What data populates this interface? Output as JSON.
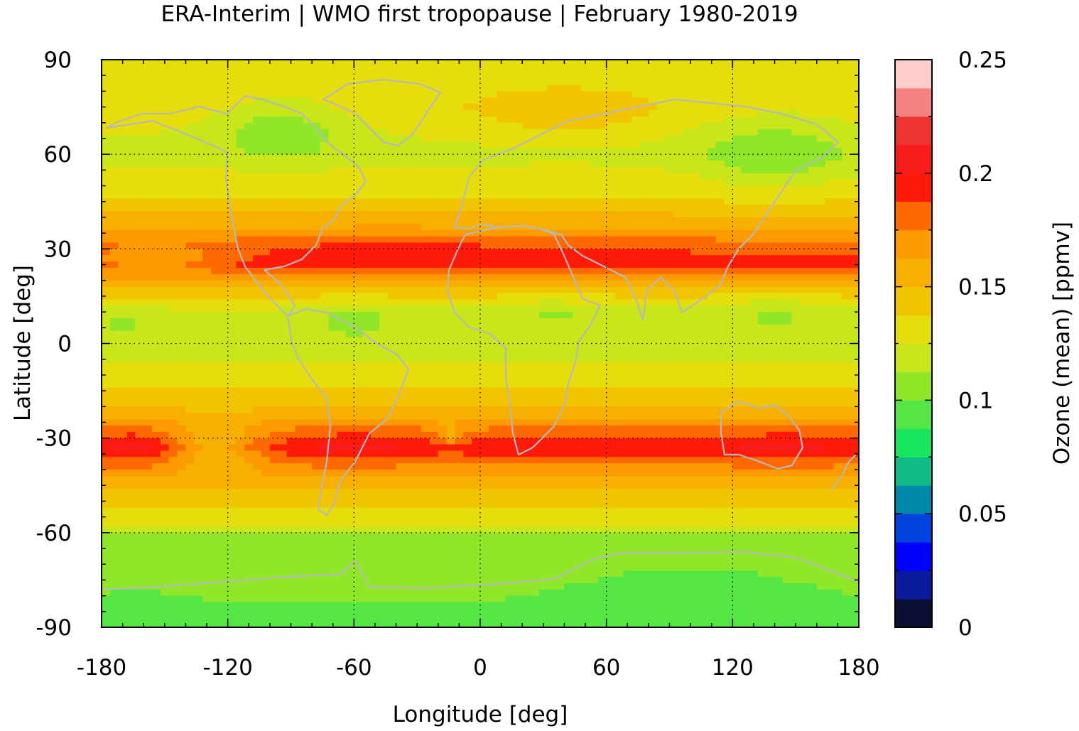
{
  "chart_data": {
    "type": "heatmap",
    "title": "ERA-Interim | WMO first tropopause | February 1980-2019",
    "xlabel": "Longitude [deg]",
    "ylabel": "Latitude [deg]",
    "xlim": [
      -180,
      180
    ],
    "ylim": [
      -90,
      90
    ],
    "xticks": [
      "-180",
      "-120",
      "-60",
      "0",
      "60",
      "120",
      "180"
    ],
    "yticks": [
      "90",
      "60",
      "30",
      "0",
      "-30",
      "-60",
      "-90"
    ],
    "grid": true,
    "colorbar": {
      "label": "Ozone (mean) [ppmv]",
      "ticks": [
        "0.25",
        "0.2",
        "0.15",
        "0.1",
        "0.05",
        "0"
      ],
      "range": [
        0,
        0.25
      ],
      "levels": [
        {
          "min": 0.0,
          "max": 0.0125,
          "color": "#0b0f33"
        },
        {
          "min": 0.0125,
          "max": 0.025,
          "color": "#0a1a9a"
        },
        {
          "min": 0.025,
          "max": 0.0375,
          "color": "#0000ff"
        },
        {
          "min": 0.0375,
          "max": 0.05,
          "color": "#0044dd"
        },
        {
          "min": 0.05,
          "max": 0.0625,
          "color": "#0088aa"
        },
        {
          "min": 0.0625,
          "max": 0.075,
          "color": "#10bb88"
        },
        {
          "min": 0.075,
          "max": 0.0875,
          "color": "#18e660"
        },
        {
          "min": 0.0875,
          "max": 0.1,
          "color": "#55e645"
        },
        {
          "min": 0.1,
          "max": 0.1125,
          "color": "#90e628"
        },
        {
          "min": 0.1125,
          "max": 0.125,
          "color": "#c8e619"
        },
        {
          "min": 0.125,
          "max": 0.1375,
          "color": "#e6dd0c"
        },
        {
          "min": 0.1375,
          "max": 0.15,
          "color": "#f2c400"
        },
        {
          "min": 0.15,
          "max": 0.1625,
          "color": "#f8b000"
        },
        {
          "min": 0.1625,
          "max": 0.175,
          "color": "#fc9b00"
        },
        {
          "min": 0.175,
          "max": 0.1875,
          "color": "#ff6a00"
        },
        {
          "min": 0.1875,
          "max": 0.2,
          "color": "#ff1a0a"
        },
        {
          "min": 0.2,
          "max": 0.2125,
          "color": "#f81c1c"
        },
        {
          "min": 0.2125,
          "max": 0.225,
          "color": "#ee3333"
        },
        {
          "min": 0.225,
          "max": 0.2375,
          "color": "#f58080"
        },
        {
          "min": 0.2375,
          "max": 0.25,
          "color": "#ffcccc"
        }
      ]
    },
    "lat_profile": [
      {
        "lat": 90,
        "value": 0.128
      },
      {
        "lat": 75,
        "value": 0.132
      },
      {
        "lat": 60,
        "value": 0.12
      },
      {
        "lat": 45,
        "value": 0.14
      },
      {
        "lat": 38,
        "value": 0.158
      },
      {
        "lat": 30,
        "value": 0.185
      },
      {
        "lat": 25,
        "value": 0.19
      },
      {
        "lat": 18,
        "value": 0.15
      },
      {
        "lat": 10,
        "value": 0.122
      },
      {
        "lat": 0,
        "value": 0.118
      },
      {
        "lat": -10,
        "value": 0.13
      },
      {
        "lat": -20,
        "value": 0.148
      },
      {
        "lat": -27,
        "value": 0.175
      },
      {
        "lat": -33,
        "value": 0.195
      },
      {
        "lat": -40,
        "value": 0.17
      },
      {
        "lat": -48,
        "value": 0.145
      },
      {
        "lat": -58,
        "value": 0.125
      },
      {
        "lat": -62,
        "value": 0.108
      },
      {
        "lat": -75,
        "value": 0.105
      },
      {
        "lat": -90,
        "value": 0.095
      }
    ],
    "anomalies": [
      {
        "lon": -95,
        "lat": 68,
        "rlon": 30,
        "rlat": 9,
        "delta": -0.022
      },
      {
        "lon": 140,
        "lat": 60,
        "rlon": 35,
        "rlat": 12,
        "delta": -0.02
      },
      {
        "lon": 40,
        "lat": 73,
        "rlon": 50,
        "rlat": 10,
        "delta": 0.014
      },
      {
        "lon": -45,
        "lat": 28,
        "rlon": 45,
        "rlat": 6,
        "delta": 0.012
      },
      {
        "lon": 40,
        "lat": 27,
        "rlon": 45,
        "rlat": 5,
        "delta": 0.01
      },
      {
        "lon": -155,
        "lat": 27,
        "rlon": 30,
        "rlat": 4,
        "delta": -0.025
      },
      {
        "lon": -60,
        "lat": 8,
        "rlon": 20,
        "rlat": 7,
        "delta": -0.012
      },
      {
        "lon": 35,
        "lat": 10,
        "rlon": 30,
        "rlat": 6,
        "delta": -0.01
      },
      {
        "lon": 140,
        "lat": 10,
        "rlon": 30,
        "rlat": 8,
        "delta": -0.01
      },
      {
        "lon": -170,
        "lat": 7,
        "rlon": 15,
        "rlat": 6,
        "delta": -0.01
      },
      {
        "lon": -165,
        "lat": -33,
        "rlon": 15,
        "rlat": 6,
        "delta": 0.01
      },
      {
        "lon": -60,
        "lat": -33,
        "rlon": 22,
        "rlat": 6,
        "delta": 0.01
      },
      {
        "lon": 145,
        "lat": -33,
        "rlon": 25,
        "rlat": 6,
        "delta": 0.01
      },
      {
        "lon": -125,
        "lat": -33,
        "rlon": 20,
        "rlat": 8,
        "delta": -0.035
      },
      {
        "lon": -15,
        "lat": -29,
        "rlon": 6,
        "rlat": 4,
        "delta": -0.02
      },
      {
        "lon": 100,
        "lat": -78,
        "rlon": 60,
        "rlat": 9,
        "delta": -0.01
      },
      {
        "lon": -165,
        "lat": -85,
        "rlon": 25,
        "rlat": 6,
        "delta": -0.008
      }
    ]
  }
}
